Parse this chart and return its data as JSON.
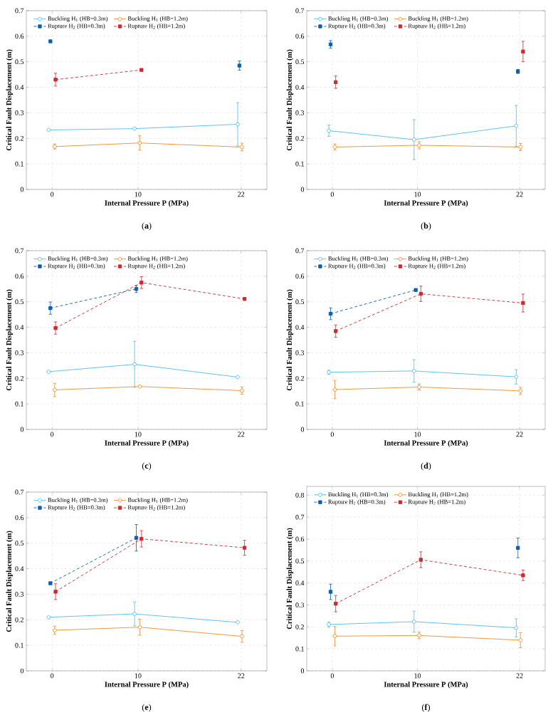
{
  "chart_data": [
    {
      "type": "line",
      "xlabel": "Internal Pressure P (MPa)",
      "ylabel": "Critical Fault Displacement (m)",
      "annotations": [
        "(**a**)"
      ],
      "xlim": [
        -3,
        25
      ],
      "ylim": [
        0,
        0.7
      ],
      "xticks": [
        0,
        10,
        22
      ],
      "yticks": [
        0,
        0.1,
        0.2,
        0.3,
        0.4,
        0.5,
        0.6,
        0.7
      ],
      "grid": true,
      "legend": "top left",
      "series": [
        {
          "name": "Buckling H$_{1}$ (HB=0.3m)",
          "color": "#4dbeee",
          "marker": "circle",
          "line_style": "solid",
          "x": [
            -0.4,
            9.6,
            21.6
          ],
          "values": [
            0.233,
            0.238,
            0.255
          ],
          "errors": [
            null,
            null,
            0.085
          ]
        },
        {
          "name": "Buckling H$_{1}$ (HB=1.2m)",
          "color": "#f08c2a",
          "marker": "circle",
          "line_style": "solid",
          "x": [
            0.3,
            10.2,
            22.1
          ],
          "values": [
            0.168,
            0.182,
            0.166
          ],
          "errors": [
            0.01,
            0.028,
            0.015
          ]
        },
        {
          "name": "Rupture H$_{2}$ (HB=0.3m)",
          "color": "#0d5fad",
          "marker": "square",
          "line_style": "dashed",
          "x": [
            -0.2,
            null,
            21.8
          ],
          "values": [
            0.58,
            null,
            0.485
          ],
          "errors": [
            null,
            null,
            0.018
          ]
        },
        {
          "name": "Rupture H$_{2}$ (HB=1.2m)",
          "color": "#cc2a2f",
          "marker": "square",
          "line_style": "dashed",
          "x": [
            0.4,
            10.4,
            null
          ],
          "values": [
            0.43,
            0.468,
            null
          ],
          "errors": [
            0.025,
            null,
            null
          ]
        }
      ]
    },
    {
      "type": "line",
      "xlabel": "Internal Pressure P (MPa)",
      "ylabel": "Critical Fault Displacement (m)",
      "annotations": [
        "(**b**)"
      ],
      "xlim": [
        -3,
        25
      ],
      "ylim": [
        0,
        0.7
      ],
      "xticks": [
        0,
        10,
        22
      ],
      "yticks": [
        0,
        0.1,
        0.2,
        0.3,
        0.4,
        0.5,
        0.6,
        0.7
      ],
      "grid": true,
      "legend": "top left",
      "series": [
        {
          "name": "Buckling H$_{1}$ (HB=0.3m)",
          "color": "#4dbeee",
          "marker": "circle",
          "line_style": "solid",
          "x": [
            -0.4,
            9.6,
            21.6
          ],
          "values": [
            0.23,
            0.195,
            0.249
          ],
          "errors": [
            0.022,
            0.078,
            0.08
          ]
        },
        {
          "name": "Buckling H$_{1}$ (HB=1.2m)",
          "color": "#f08c2a",
          "marker": "circle",
          "line_style": "solid",
          "x": [
            0.3,
            10.2,
            22.1
          ],
          "values": [
            0.166,
            0.173,
            0.166
          ],
          "errors": [
            0.012,
            0.014,
            0.014
          ]
        },
        {
          "name": "Rupture H$_{2}$ (HB=0.3m)",
          "color": "#0d5fad",
          "marker": "square",
          "line_style": "dashed",
          "x": [
            -0.2,
            null,
            21.8
          ],
          "values": [
            0.568,
            null,
            0.462
          ],
          "errors": [
            0.015,
            null,
            0.008
          ]
        },
        {
          "name": "Rupture H$_{2}$ (HB=1.2m)",
          "color": "#cc2a2f",
          "marker": "square",
          "line_style": "dashed",
          "x": [
            0.4,
            null,
            22.4
          ],
          "values": [
            0.42,
            null,
            0.54
          ],
          "errors": [
            0.024,
            null,
            0.04
          ]
        }
      ]
    },
    {
      "type": "line",
      "xlabel": "Internal Pressure P (MPa)",
      "ylabel": "Critical Fault Displacement (m)",
      "annotations": [
        "(**c**)"
      ],
      "xlim": [
        -3,
        25
      ],
      "ylim": [
        0,
        0.7
      ],
      "xticks": [
        0,
        10,
        22
      ],
      "yticks": [
        0,
        0.1,
        0.2,
        0.3,
        0.4,
        0.5,
        0.6,
        0.7
      ],
      "grid": true,
      "legend": "top left",
      "series": [
        {
          "name": "Buckling H$_{1}$ (HB=0.3m)",
          "color": "#4dbeee",
          "marker": "circle",
          "line_style": "solid",
          "x": [
            -0.4,
            9.6,
            21.6
          ],
          "values": [
            0.226,
            0.255,
            0.205
          ],
          "errors": [
            null,
            0.09,
            null
          ]
        },
        {
          "name": "Buckling H$_{1}$ (HB=1.2m)",
          "color": "#f08c2a",
          "marker": "circle",
          "line_style": "solid",
          "x": [
            0.3,
            10.2,
            22.1
          ],
          "values": [
            0.155,
            0.168,
            0.152
          ],
          "errors": [
            0.026,
            null,
            0.014
          ]
        },
        {
          "name": "Rupture H$_{2}$ (HB=0.3m)",
          "color": "#0d5fad",
          "marker": "square",
          "line_style": "dashed",
          "x": [
            -0.2,
            9.8,
            null
          ],
          "values": [
            0.475,
            0.55,
            null
          ],
          "errors": [
            0.024,
            0.014,
            null
          ]
        },
        {
          "name": "Rupture H$_{2}$ (HB=1.2m)",
          "color": "#cc2a2f",
          "marker": "square",
          "line_style": "dashed",
          "x": [
            0.4,
            10.4,
            22.4
          ],
          "values": [
            0.397,
            0.575,
            0.511
          ],
          "errors": [
            0.024,
            0.023,
            null
          ]
        }
      ]
    },
    {
      "type": "line",
      "xlabel": "Internal Pressure P (MPa)",
      "ylabel": "Critical Fault Displacement (m)",
      "annotations": [
        "(**d**)"
      ],
      "xlim": [
        -3,
        25
      ],
      "ylim": [
        0,
        0.7
      ],
      "xticks": [
        0,
        10,
        22
      ],
      "yticks": [
        0,
        0.1,
        0.2,
        0.3,
        0.4,
        0.5,
        0.6,
        0.7
      ],
      "grid": true,
      "legend": "top left",
      "series": [
        {
          "name": "Buckling H$_{1}$ (HB=0.3m)",
          "color": "#4dbeee",
          "marker": "circle",
          "line_style": "solid",
          "x": [
            -0.4,
            9.6,
            21.6
          ],
          "values": [
            0.224,
            0.229,
            0.206
          ],
          "errors": [
            0.008,
            0.044,
            0.028
          ]
        },
        {
          "name": "Buckling H$_{1}$ (HB=1.2m)",
          "color": "#f08c2a",
          "marker": "circle",
          "line_style": "solid",
          "x": [
            0.3,
            10.2,
            22.1
          ],
          "values": [
            0.156,
            0.166,
            0.151
          ],
          "errors": [
            0.036,
            0.012,
            0.014
          ]
        },
        {
          "name": "Rupture H$_{2}$ (HB=0.3m)",
          "color": "#0d5fad",
          "marker": "square",
          "line_style": "dashed",
          "x": [
            -0.2,
            9.8,
            null
          ],
          "values": [
            0.453,
            0.546,
            null
          ],
          "errors": [
            0.023,
            null,
            null
          ]
        },
        {
          "name": "Rupture H$_{2}$ (HB=1.2m)",
          "color": "#cc2a2f",
          "marker": "square",
          "line_style": "dashed",
          "x": [
            0.4,
            10.4,
            22.4
          ],
          "values": [
            0.385,
            0.531,
            0.495
          ],
          "errors": [
            0.024,
            0.03,
            0.035
          ]
        }
      ]
    },
    {
      "type": "line",
      "xlabel": "Internal Pressure P (MPa)",
      "ylabel": "Critical Fault Displacement (m)",
      "annotations": [
        "(**e**)"
      ],
      "xlim": [
        -3,
        25
      ],
      "ylim": [
        0,
        0.7
      ],
      "xticks": [
        0,
        10,
        22
      ],
      "yticks": [
        0,
        0.1,
        0.2,
        0.3,
        0.4,
        0.5,
        0.6,
        0.7
      ],
      "grid": true,
      "legend": "top left",
      "series": [
        {
          "name": "Buckling H$_{1}$ (HB=0.3m)",
          "color": "#4dbeee",
          "marker": "circle",
          "line_style": "solid",
          "x": [
            -0.4,
            9.6,
            21.6
          ],
          "values": [
            0.21,
            0.223,
            0.19
          ],
          "errors": [
            null,
            0.047,
            null
          ]
        },
        {
          "name": "Buckling H$_{1}$ (HB=1.2m)",
          "color": "#f08c2a",
          "marker": "circle",
          "line_style": "solid",
          "x": [
            0.3,
            10.2,
            22.1
          ],
          "values": [
            0.159,
            0.171,
            0.135
          ],
          "errors": [
            0.016,
            0.031,
            0.023
          ]
        },
        {
          "name": "Rupture H$_{2}$ (HB=0.3m)",
          "color": "#0d5fad",
          "marker": "square",
          "line_style": "dashed",
          "x": [
            -0.2,
            9.8,
            null
          ],
          "values": [
            0.343,
            0.521,
            null
          ],
          "errors": [
            null,
            0.052,
            null
          ]
        },
        {
          "name": "Rupture H$_{2}$ (HB=1.2m)",
          "color": "#cc2a2f",
          "marker": "square",
          "line_style": "dashed",
          "x": [
            0.4,
            10.4,
            22.4
          ],
          "values": [
            0.31,
            0.517,
            0.482
          ],
          "errors": [
            0.031,
            0.032,
            0.029
          ]
        }
      ]
    },
    {
      "type": "line",
      "xlabel": "Internal Pressure P (MPa)",
      "ylabel": "Critical Fault Displacement (m)",
      "annotations": [
        "(**f**)"
      ],
      "xlim": [
        -3,
        25
      ],
      "ylim": [
        0,
        0.84
      ],
      "xticks": [
        0,
        10,
        22
      ],
      "yticks": [
        0,
        0.1,
        0.2,
        0.3,
        0.4,
        0.5,
        0.6,
        0.7,
        0.8
      ],
      "grid": true,
      "legend": "top left",
      "series": [
        {
          "name": "Buckling H$_{1}$ (HB=0.3m)",
          "color": "#4dbeee",
          "marker": "circle",
          "line_style": "solid",
          "x": [
            -0.4,
            9.6,
            21.6
          ],
          "values": [
            0.211,
            0.224,
            0.196
          ],
          "errors": [
            0.012,
            0.048,
            0.041
          ]
        },
        {
          "name": "Buckling H$_{1}$ (HB=1.2m)",
          "color": "#f08c2a",
          "marker": "circle",
          "line_style": "solid",
          "x": [
            0.3,
            10.2,
            22.1
          ],
          "values": [
            0.158,
            0.161,
            0.14
          ],
          "errors": [
            0.044,
            0.015,
            0.034
          ]
        },
        {
          "name": "Rupture H$_{2}$ (HB=0.3m)",
          "color": "#0d5fad",
          "marker": "square",
          "line_style": "dashed",
          "x": [
            -0.2,
            null,
            21.8
          ],
          "values": [
            0.36,
            null,
            0.56
          ],
          "errors": [
            0.035,
            null,
            0.045
          ]
        },
        {
          "name": "Rupture H$_{2}$ (HB=1.2m)",
          "color": "#cc2a2f",
          "marker": "square",
          "line_style": "dashed",
          "x": [
            0.4,
            10.4,
            22.4
          ],
          "values": [
            0.306,
            0.506,
            0.435
          ],
          "errors": [
            0.037,
            0.036,
            0.024
          ]
        }
      ]
    }
  ]
}
